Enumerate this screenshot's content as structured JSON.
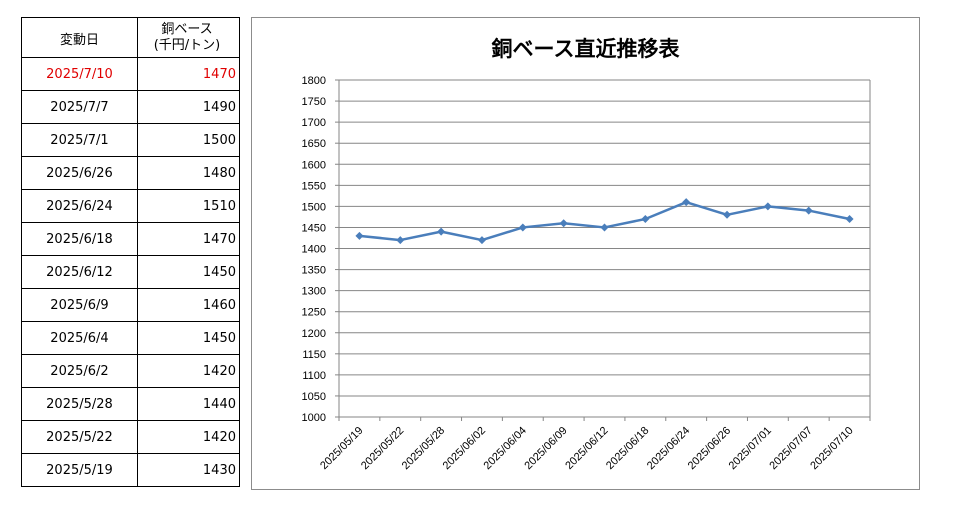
{
  "table": {
    "header": {
      "date_label": "変動日",
      "price_label_line1": "銅ベース",
      "price_label_line2": "(千円/トン)"
    },
    "rows": [
      {
        "date": "2025/7/10",
        "price": "1470",
        "highlight": true
      },
      {
        "date": "2025/7/7",
        "price": "1490"
      },
      {
        "date": "2025/7/1",
        "price": "1500"
      },
      {
        "date": "2025/6/26",
        "price": "1480"
      },
      {
        "date": "2025/6/24",
        "price": "1510"
      },
      {
        "date": "2025/6/18",
        "price": "1470"
      },
      {
        "date": "2025/6/12",
        "price": "1450"
      },
      {
        "date": "2025/6/9",
        "price": "1460"
      },
      {
        "date": "2025/6/4",
        "price": "1450"
      },
      {
        "date": "2025/6/2",
        "price": "1420"
      },
      {
        "date": "2025/5/28",
        "price": "1440"
      },
      {
        "date": "2025/5/22",
        "price": "1420"
      },
      {
        "date": "2025/5/19",
        "price": "1430"
      }
    ]
  },
  "colors": {
    "highlight": "#e00000",
    "line": "#4a7ebb",
    "grid": "#868686"
  },
  "chart_data": {
    "type": "line",
    "title": "銅ベース直近推移表",
    "categories": [
      "2025/05/19",
      "2025/05/22",
      "2025/05/28",
      "2025/06/02",
      "2025/06/04",
      "2025/06/09",
      "2025/06/12",
      "2025/06/18",
      "2025/06/24",
      "2025/06/26",
      "2025/07/01",
      "2025/07/07",
      "2025/07/10"
    ],
    "series": [
      {
        "values": [
          1430,
          1420,
          1440,
          1420,
          1450,
          1460,
          1450,
          1470,
          1510,
          1480,
          1500,
          1490,
          1470
        ]
      }
    ],
    "ylim": [
      1000,
      1800
    ],
    "ytick_step": 50,
    "grid": true,
    "marker": "diamond"
  }
}
